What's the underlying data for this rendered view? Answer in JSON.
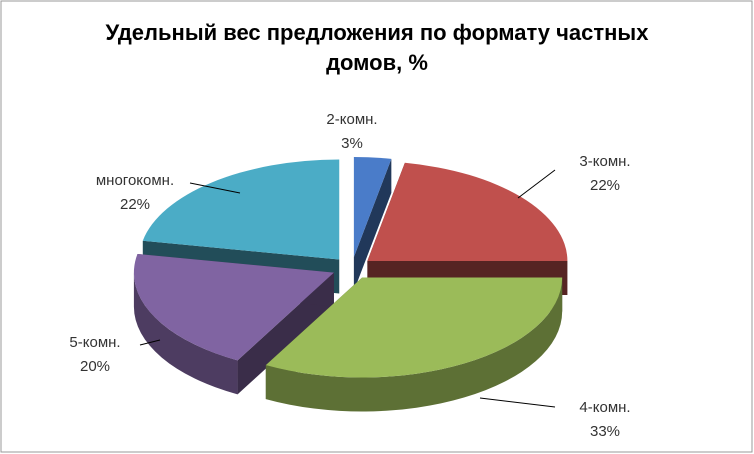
{
  "chart_data": {
    "type": "pie",
    "title": "Удельный вес предложения по формату частных домов, %",
    "categories": [
      "2-комн.",
      "3-комн.",
      "4-комн.",
      "5-комн.",
      "многокомн."
    ],
    "values": [
      3,
      22,
      33,
      20,
      22
    ],
    "value_labels": [
      "3%",
      "22%",
      "33%",
      "20%",
      "22%"
    ],
    "colors": [
      "#4a7cc9",
      "#c0504d",
      "#9bbb59",
      "#8064a2",
      "#4bacc6"
    ]
  }
}
